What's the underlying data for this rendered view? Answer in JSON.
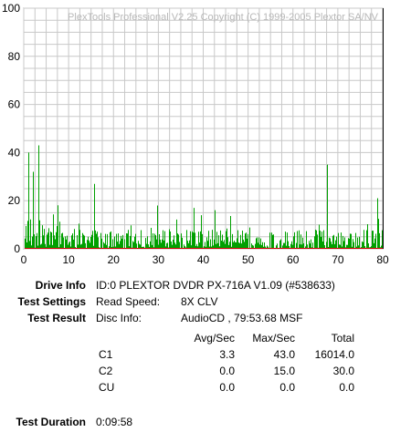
{
  "chart_data": {
    "type": "bar",
    "title": "PlexTools Professional V2.25 Copyright (C) 1999-2005 Plextor SA/NV",
    "xlim": [
      0,
      80
    ],
    "ylim": [
      0,
      100
    ],
    "x_ticks": [
      "0",
      "10",
      "20",
      "30",
      "40",
      "50",
      "60",
      "70",
      "80"
    ],
    "y_ticks": [
      "0",
      "20",
      "40",
      "60",
      "80",
      "100"
    ],
    "grid": true,
    "series_color": "#00a000",
    "secondary_line_color": "#cc0000",
    "marker_line_x": 80,
    "notable_peaks": [
      {
        "x": 3.2,
        "y": 43
      },
      {
        "x": 1.0,
        "y": 40
      },
      {
        "x": 2.0,
        "y": 32
      },
      {
        "x": 15.7,
        "y": 27
      },
      {
        "x": 67.6,
        "y": 35
      },
      {
        "x": 78.8,
        "y": 21
      },
      {
        "x": 29.7,
        "y": 18
      },
      {
        "x": 37.8,
        "y": 17
      }
    ]
  },
  "info": {
    "drive_label": "Drive Info",
    "drive_value": "ID:0 PLEXTOR DVDR PX-716A V1.09 (#538633)",
    "settings_label": "Test Settings",
    "speed_label": "Read Speed:",
    "speed_value": "8X CLV",
    "result_label": "Test Result",
    "disc_label": "Disc Info:",
    "disc_value": "AudioCD , 79:53.68 MSF",
    "duration_label": "Test Duration",
    "duration_value": "0:09:58"
  },
  "table": {
    "headers": [
      "Avg/Sec",
      "Max/Sec",
      "Total"
    ],
    "rows": [
      {
        "name": "C1",
        "avg": "3.3",
        "max": "43.0",
        "total": "16014.0"
      },
      {
        "name": "C2",
        "avg": "0.0",
        "max": "15.0",
        "total": "30.0"
      },
      {
        "name": "CU",
        "avg": "0.0",
        "max": "0.0",
        "total": "0.0"
      }
    ]
  }
}
